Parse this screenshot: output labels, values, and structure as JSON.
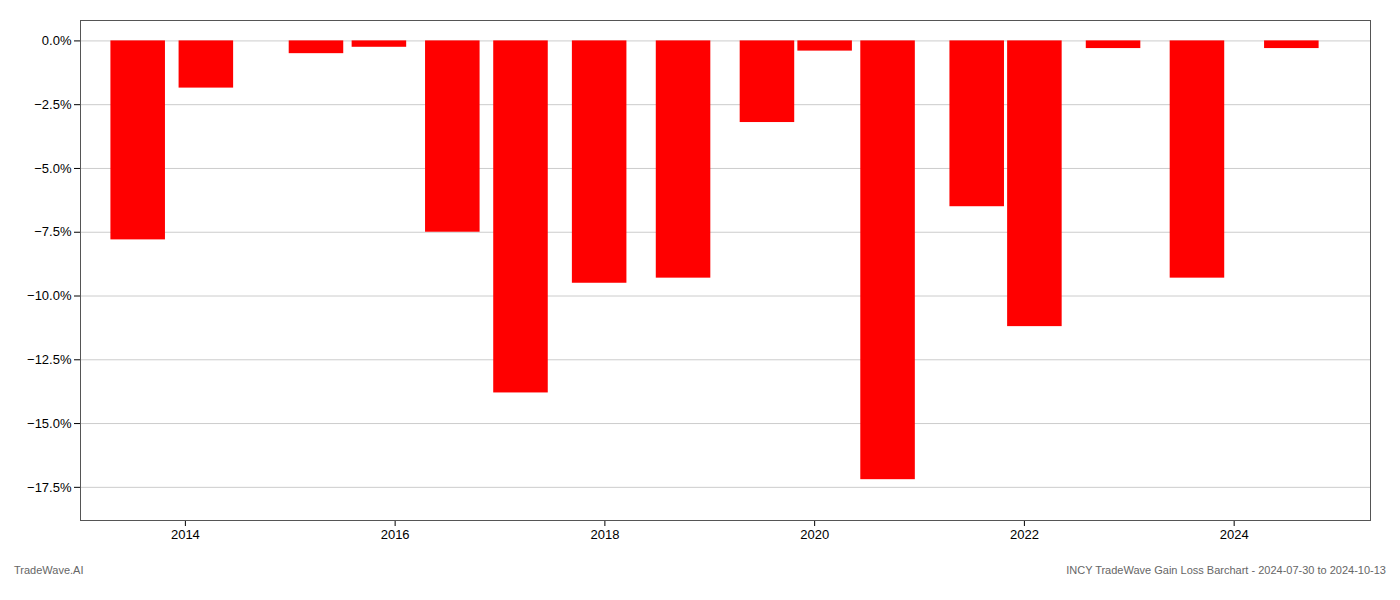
{
  "chart_data": {
    "type": "bar",
    "x": [
      2013.55,
      2014.2,
      2015.25,
      2015.85,
      2016.55,
      2017.2,
      2017.95,
      2018.75,
      2019.55,
      2020.1,
      2020.7,
      2021.55,
      2022.1,
      2022.85,
      2023.65,
      2024.55
    ],
    "values": [
      -7.8,
      -1.85,
      -0.5,
      -0.25,
      -7.5,
      -13.8,
      -9.5,
      -9.3,
      -3.2,
      -0.4,
      -17.2,
      -6.5,
      -11.2,
      -0.3,
      -9.3,
      -0.3
    ],
    "color": "#FF0000",
    "xlim": [
      2013.0,
      2025.3
    ],
    "ylim": [
      -18.8,
      0.8
    ],
    "xticks": [
      2014,
      2016,
      2018,
      2020,
      2022,
      2024
    ],
    "yticks": [
      {
        "value": 0.0,
        "label": "0.0%"
      },
      {
        "value": -2.5,
        "label": "−2.5%"
      },
      {
        "value": -5.0,
        "label": "−5.0%"
      },
      {
        "value": -7.5,
        "label": "−7.5%"
      },
      {
        "value": -10.0,
        "label": "−10.0%"
      },
      {
        "value": -12.5,
        "label": "−12.5%"
      },
      {
        "value": -15.0,
        "label": "−15.0%"
      },
      {
        "value": -17.5,
        "label": "−17.5%"
      }
    ],
    "grid": true,
    "annotations": [
      "TradeWave.AI",
      "INCY TradeWave Gain Loss Barchart - 2024-07-30 to 2024-10-13"
    ]
  }
}
